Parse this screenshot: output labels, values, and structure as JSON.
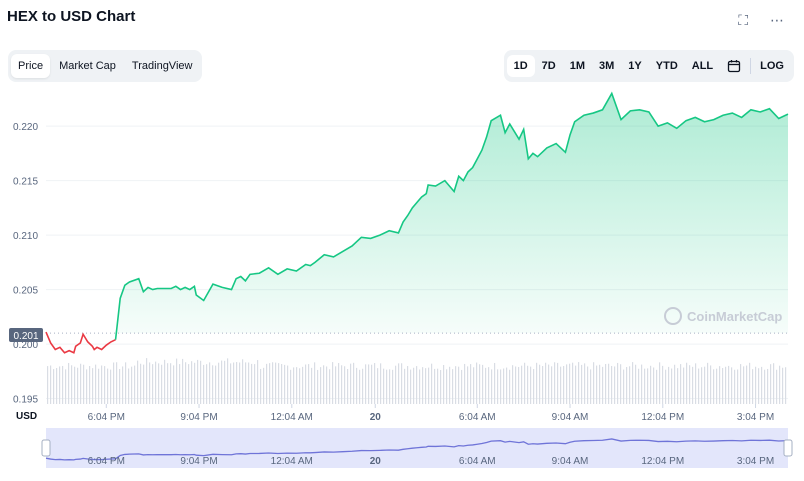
{
  "header": {
    "title": "HEX to USD Chart",
    "expand_icon": "expand-icon",
    "more_icon": "more-options-icon"
  },
  "view_tabs": [
    {
      "label": "Price",
      "active": true
    },
    {
      "label": "Market Cap",
      "active": false
    },
    {
      "label": "TradingView",
      "active": false
    }
  ],
  "ranges": [
    {
      "label": "1D",
      "active": true
    },
    {
      "label": "7D",
      "active": false
    },
    {
      "label": "1M",
      "active": false
    },
    {
      "label": "3M",
      "active": false
    },
    {
      "label": "1Y",
      "active": false
    },
    {
      "label": "YTD",
      "active": false
    },
    {
      "label": "ALL",
      "active": false
    }
  ],
  "calendar_icon": "calendar-icon",
  "log_label": "LOG",
  "watermark": "CoinMarketCap",
  "currency_label": "USD",
  "open_price_label": "0.201",
  "colors": {
    "up": "#16c784",
    "down": "#ea3943",
    "range_fill": "#e3e6fb",
    "range_line": "#6f74d8"
  },
  "chart_data": {
    "type": "line",
    "yticks": [
      0.195,
      0.2,
      0.205,
      0.21,
      0.215,
      0.22
    ],
    "ylim": [
      0.1945,
      0.2235
    ],
    "xticks": [
      "6:04 PM",
      "9:04 PM",
      "12:04 AM",
      "20",
      "6:04 AM",
      "9:04 AM",
      "12:04 PM",
      "3:04 PM"
    ],
    "open_price": 0.201,
    "series": [
      {
        "x": [
          0.0,
          0.05,
          0.1,
          0.15,
          0.2,
          0.25,
          0.3,
          0.32,
          0.37,
          0.4,
          0.45,
          0.5,
          0.52,
          0.55,
          0.6,
          0.65,
          0.7,
          0.75,
          0.8,
          0.85,
          0.9,
          1.0,
          1.05,
          1.1,
          1.15,
          1.2,
          1.3,
          1.35,
          1.4,
          1.45,
          1.5,
          1.55,
          1.6,
          1.62,
          1.7,
          1.8,
          1.9,
          2.0,
          2.05,
          2.1,
          2.15,
          2.2,
          2.3,
          2.4,
          2.5,
          2.6,
          2.7,
          2.8,
          2.85,
          2.9,
          3.0,
          3.1,
          3.2,
          3.3,
          3.4,
          3.5,
          3.6,
          3.7,
          3.8,
          3.85,
          3.9,
          3.95,
          4.0,
          4.05,
          4.1,
          4.12,
          4.2,
          4.3,
          4.4,
          4.45,
          4.5,
          4.55,
          4.6,
          4.65,
          4.7,
          4.75,
          4.8,
          4.9,
          4.95,
          5.0,
          5.1,
          5.15,
          5.2,
          5.25,
          5.3,
          5.4,
          5.5,
          5.6,
          5.65,
          5.7,
          5.8,
          5.9,
          6.0,
          6.1,
          6.2,
          6.3,
          6.4,
          6.5,
          6.6,
          6.7,
          6.8,
          6.9,
          7.0,
          7.1,
          7.2,
          7.3,
          7.4,
          7.5,
          7.6,
          7.7,
          7.8,
          7.9,
          8.0
        ],
        "y": [
          0.2011,
          0.2001,
          0.1995,
          0.1997,
          0.1992,
          0.1994,
          0.1992,
          0.1998,
          0.2001,
          0.2009,
          0.2002,
          0.1998,
          0.1995,
          0.1997,
          0.1995,
          0.1999,
          0.2002,
          0.2004,
          0.2042,
          0.2054,
          0.2057,
          0.206,
          0.2048,
          0.2052,
          0.205,
          0.2051,
          0.2051,
          0.2051,
          0.2053,
          0.205,
          0.2052,
          0.205,
          0.2053,
          0.2045,
          0.204,
          0.2055,
          0.2052,
          0.205,
          0.206,
          0.2062,
          0.2058,
          0.2064,
          0.2065,
          0.207,
          0.2064,
          0.2069,
          0.2067,
          0.2073,
          0.2072,
          0.2075,
          0.2082,
          0.208,
          0.2085,
          0.209,
          0.2098,
          0.2097,
          0.21,
          0.2104,
          0.2102,
          0.2112,
          0.2118,
          0.2125,
          0.213,
          0.2135,
          0.2138,
          0.2146,
          0.2145,
          0.215,
          0.214,
          0.2154,
          0.215,
          0.2158,
          0.2162,
          0.217,
          0.2178,
          0.219,
          0.2205,
          0.221,
          0.2194,
          0.2202,
          0.2188,
          0.2197,
          0.217,
          0.2175,
          0.2172,
          0.218,
          0.2184,
          0.2176,
          0.2192,
          0.2204,
          0.221,
          0.2212,
          0.2215,
          0.223,
          0.2206,
          0.2214,
          0.2215,
          0.2213,
          0.22,
          0.2203,
          0.2198,
          0.2205,
          0.2208,
          0.2204,
          0.2206,
          0.221,
          0.2212,
          0.2208,
          0.2215,
          0.2213,
          0.2216,
          0.2207,
          0.2211
        ]
      }
    ]
  }
}
